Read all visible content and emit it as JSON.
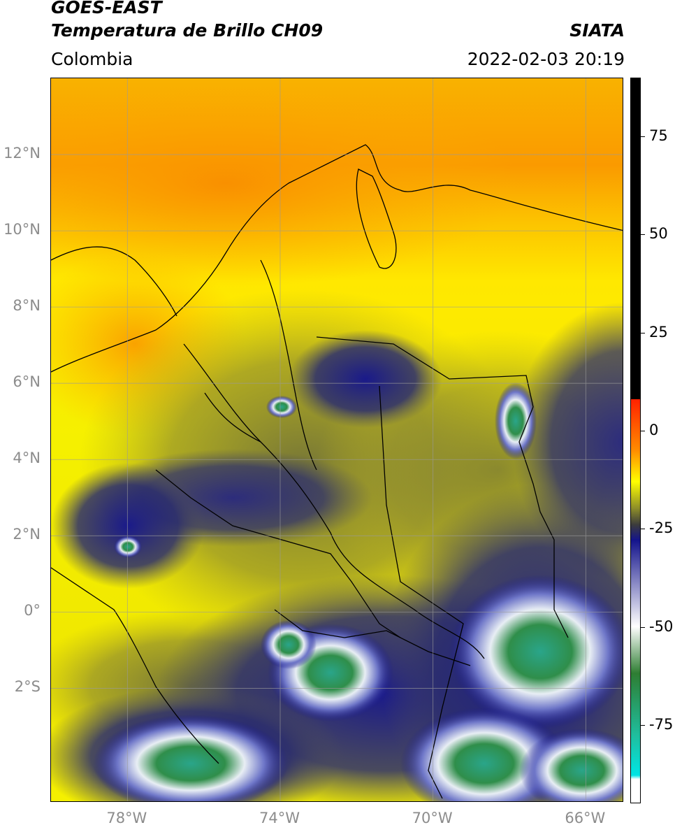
{
  "header": {
    "satellite": "GOES-EAST",
    "product": "Temperatura de Brillo CH09",
    "region": "Colombia",
    "agency": "SIATA",
    "datetime": "2022-02-03 20:19"
  },
  "map": {
    "lat_range": [
      -5,
      14
    ],
    "lon_range": [
      -80,
      -65
    ],
    "grid": true,
    "lat_labels": [
      "12°N",
      "10°N",
      "8°N",
      "6°N",
      "4°N",
      "2°N",
      "0°",
      "2°S"
    ],
    "lat_values": [
      12,
      10,
      8,
      6,
      4,
      2,
      0,
      -2
    ],
    "lon_labels": [
      "78°W",
      "74°W",
      "70°W",
      "66°W"
    ],
    "lon_values": [
      -78,
      -74,
      -70,
      -66
    ]
  },
  "colorbar": {
    "range": [
      -95,
      90
    ],
    "ticks": [
      75,
      50,
      25,
      0,
      -25,
      -50,
      -75
    ],
    "tick_labels": [
      "75",
      "50",
      "25",
      "0",
      "-25",
      "-50",
      "-75"
    ],
    "colors": {
      "warm_black": "#000000",
      "red": "#ff2200",
      "orange": "#ff8c00",
      "yellow": "#ffff00",
      "olive": "#8a8a2a",
      "dark_gray": "#3c3c3c",
      "navy": "#14148c",
      "white": "#ffffff",
      "green": "#2e7d32",
      "teal": "#1fbf9f",
      "cyan": "#00e5e5"
    }
  }
}
